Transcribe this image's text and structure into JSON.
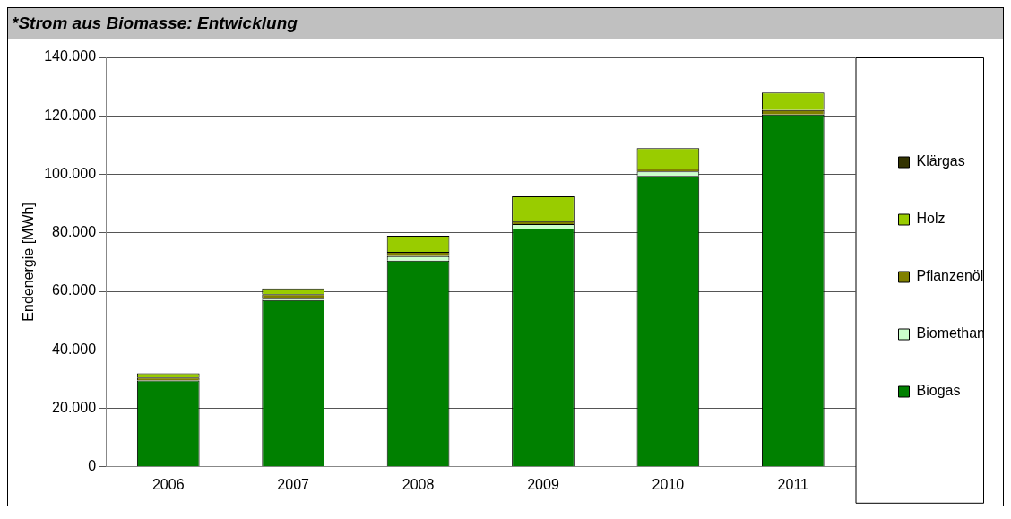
{
  "chart_data": {
    "type": "bar",
    "title": "*Strom aus Biomasse: Entwicklung",
    "ylabel": "Endenergie [MWh]",
    "categories": [
      "2006",
      "2007",
      "2008",
      "2009",
      "2010",
      "2011"
    ],
    "stacked": true,
    "series": [
      {
        "name": "Biogas",
        "color": "#008000",
        "values": [
          29500,
          57000,
          70500,
          81500,
          99500,
          120500
        ]
      },
      {
        "name": "Biomethan",
        "color": "#ccffcc",
        "values": [
          0,
          500,
          1500,
          1500,
          1500,
          0
        ]
      },
      {
        "name": "Pflanzenöl",
        "color": "#808000",
        "values": [
          1000,
          1500,
          1500,
          1000,
          1000,
          1500
        ]
      },
      {
        "name": "Holz",
        "color": "#99cc00",
        "values": [
          1500,
          2000,
          5500,
          8500,
          7000,
          6000
        ]
      },
      {
        "name": "Klärgas",
        "color": "#333300",
        "values": [
          0,
          0,
          0,
          0,
          0,
          0
        ]
      }
    ],
    "ylim": [
      0,
      140000
    ],
    "yticks": [
      {
        "value": 0,
        "label": "0"
      },
      {
        "value": 20000,
        "label": "20.000"
      },
      {
        "value": 40000,
        "label": "40.000"
      },
      {
        "value": 60000,
        "label": "60.000"
      },
      {
        "value": 80000,
        "label": "80.000"
      },
      {
        "value": 100000,
        "label": "100.000"
      },
      {
        "value": 120000,
        "label": "120.000"
      },
      {
        "value": 140000,
        "label": "140.000"
      }
    ],
    "grid": "y",
    "legend": "right"
  }
}
